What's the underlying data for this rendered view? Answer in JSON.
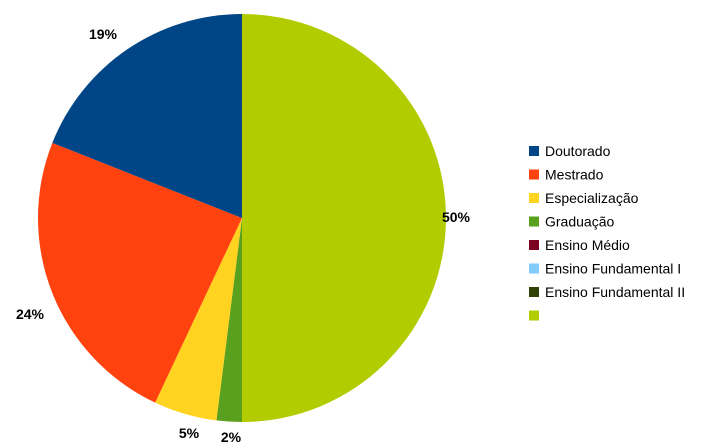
{
  "chart_data": {
    "type": "pie",
    "title": "",
    "start_angle_deg": 0,
    "direction": "clockwise",
    "legend_position": "right",
    "slices": [
      {
        "name": "",
        "value": 50,
        "label": "50%",
        "color": "#b3cc00"
      },
      {
        "name": "Graduação",
        "value": 2,
        "label": "2%",
        "color": "#58a01e"
      },
      {
        "name": "Especialização",
        "value": 5,
        "label": "5%",
        "color": "#ffd320"
      },
      {
        "name": "Mestrado",
        "value": 24,
        "label": "24%",
        "color": "#ff420e"
      },
      {
        "name": "Doutorado",
        "value": 19,
        "label": "19%",
        "color": "#004586"
      }
    ],
    "legend": [
      {
        "name": "Doutorado",
        "color": "#004586"
      },
      {
        "name": "Mestrado",
        "color": "#ff420e"
      },
      {
        "name": "Especialização",
        "color": "#ffd320"
      },
      {
        "name": "Graduação",
        "color": "#58a01e"
      },
      {
        "name": "Ensino Médio",
        "color": "#7e0021"
      },
      {
        "name": "Ensino Fundamental I",
        "color": "#83caff"
      },
      {
        "name": "Ensino Fundamental II",
        "color": "#314004"
      },
      {
        "name": "",
        "color": "#b3cc00"
      }
    ]
  }
}
